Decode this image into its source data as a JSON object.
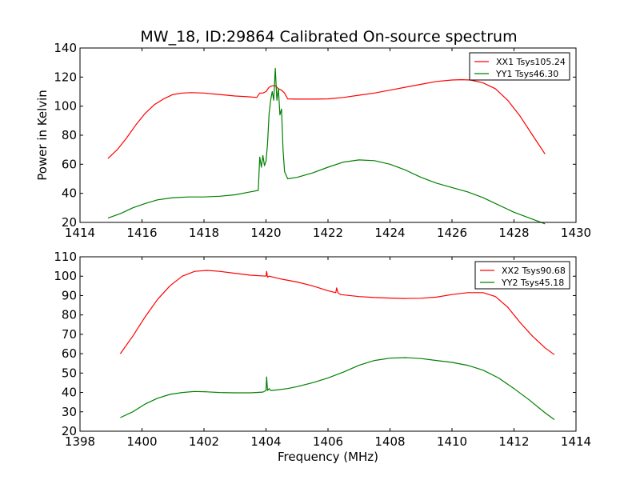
{
  "title": "MW_18, ID:29864 Calibrated On-source spectrum",
  "chart_data": [
    {
      "type": "line",
      "xlabel": "",
      "ylabel": "Power in Kelvin",
      "xlim": [
        1414,
        1430
      ],
      "ylim": [
        20,
        140
      ],
      "xticks": [
        1414,
        1416,
        1418,
        1420,
        1422,
        1424,
        1426,
        1428,
        1430
      ],
      "yticks": [
        20,
        40,
        60,
        80,
        100,
        120,
        140
      ],
      "grid": false,
      "legend_position": "upper right",
      "series": [
        {
          "name": "XX1 Tsys105.24",
          "color": "#ff0000",
          "x": [
            1414.9,
            1415.2,
            1415.5,
            1415.8,
            1416.1,
            1416.4,
            1416.7,
            1417.0,
            1417.3,
            1417.6,
            1418.0,
            1418.5,
            1419.0,
            1419.4,
            1419.7,
            1419.8,
            1419.9,
            1420.0,
            1420.1,
            1420.2,
            1420.3,
            1420.4,
            1420.5,
            1420.6,
            1420.7,
            1421.0,
            1421.5,
            1422.0,
            1422.5,
            1423.0,
            1423.5,
            1424.0,
            1424.5,
            1425.0,
            1425.5,
            1426.0,
            1426.3,
            1426.6,
            1427.0,
            1427.4,
            1427.8,
            1428.2,
            1428.6,
            1429.0
          ],
          "y": [
            64,
            70,
            78,
            87,
            95,
            101,
            105,
            108,
            109,
            109.3,
            109,
            108,
            107,
            106.5,
            106,
            109,
            109,
            110,
            113,
            114,
            114,
            112,
            111,
            109,
            105,
            104.8,
            104.8,
            105,
            106,
            107.5,
            109,
            111,
            113,
            115,
            117,
            118,
            118.2,
            118,
            116,
            112,
            104,
            93,
            80,
            67
          ]
        },
        {
          "name": "YY1 Tsys46.30",
          "color": "#008000",
          "x": [
            1414.9,
            1415.3,
            1415.7,
            1416.1,
            1416.5,
            1417.0,
            1417.5,
            1418.0,
            1418.5,
            1419.0,
            1419.5,
            1419.75,
            1419.8,
            1419.85,
            1419.9,
            1419.95,
            1420.0,
            1420.05,
            1420.1,
            1420.15,
            1420.2,
            1420.25,
            1420.3,
            1420.35,
            1420.4,
            1420.45,
            1420.5,
            1420.55,
            1420.6,
            1420.7,
            1421.0,
            1421.5,
            1422.0,
            1422.5,
            1423.0,
            1423.5,
            1424.0,
            1424.5,
            1425.0,
            1425.5,
            1426.0,
            1426.5,
            1427.0,
            1427.5,
            1428.0,
            1428.5,
            1429.0
          ],
          "y": [
            23,
            26,
            30,
            33,
            35.5,
            37,
            37.5,
            37.5,
            38,
            39,
            41,
            42,
            65,
            58,
            66,
            59,
            62,
            74,
            95,
            104,
            110,
            104,
            126,
            104,
            112,
            94,
            98,
            70,
            55,
            50,
            51,
            54,
            58,
            61.5,
            63,
            62.5,
            60,
            56,
            51,
            47,
            44,
            41,
            37,
            32,
            27,
            23,
            19
          ]
        }
      ]
    },
    {
      "type": "line",
      "xlabel": "Frequency (MHz)",
      "ylabel": "",
      "xlim": [
        1398,
        1414
      ],
      "ylim": [
        20,
        110
      ],
      "xticks": [
        1398,
        1400,
        1402,
        1404,
        1406,
        1408,
        1410,
        1412,
        1414
      ],
      "yticks": [
        20,
        30,
        40,
        50,
        60,
        70,
        80,
        90,
        100,
        110
      ],
      "grid": false,
      "legend_position": "upper right",
      "series": [
        {
          "name": "XX2 Tsys90.68",
          "color": "#ff0000",
          "x": [
            1399.3,
            1399.7,
            1400.1,
            1400.5,
            1400.9,
            1401.3,
            1401.7,
            1402.1,
            1402.5,
            1403.0,
            1403.5,
            1404.0,
            1404.02,
            1404.05,
            1404.1,
            1404.5,
            1405.0,
            1405.5,
            1406.0,
            1406.25,
            1406.28,
            1406.32,
            1406.4,
            1407.0,
            1407.5,
            1408.0,
            1408.5,
            1409.0,
            1409.5,
            1410.0,
            1410.5,
            1411.0,
            1411.4,
            1411.8,
            1412.2,
            1412.6,
            1413.0,
            1413.3
          ],
          "y": [
            60,
            69,
            79,
            88,
            95,
            100,
            102.5,
            103,
            102.5,
            101.5,
            100.5,
            100,
            102.5,
            99.5,
            100,
            98.5,
            97,
            95,
            92.5,
            91.5,
            94,
            91.5,
            90.5,
            89.5,
            89,
            88.7,
            88.5,
            88.6,
            89.2,
            90.5,
            91.5,
            91.5,
            89.5,
            84,
            76,
            69,
            63,
            59.5
          ]
        },
        {
          "name": "YY2 Tsys45.18",
          "color": "#008000",
          "x": [
            1399.3,
            1399.7,
            1400.1,
            1400.5,
            1400.9,
            1401.3,
            1401.7,
            1402.1,
            1402.5,
            1403.0,
            1403.5,
            1403.9,
            1404.0,
            1404.02,
            1404.05,
            1404.1,
            1404.15,
            1404.3,
            1404.7,
            1405.0,
            1405.5,
            1406.0,
            1406.5,
            1407.0,
            1407.5,
            1408.0,
            1408.5,
            1409.0,
            1409.5,
            1410.0,
            1410.5,
            1411.0,
            1411.5,
            1412.0,
            1412.5,
            1413.0,
            1413.3
          ],
          "y": [
            27,
            30,
            34,
            37,
            39,
            40,
            40.5,
            40.3,
            40,
            39.8,
            39.8,
            40.2,
            41,
            48,
            41,
            42,
            41,
            41.2,
            42,
            43,
            45,
            47.5,
            50.5,
            54,
            56.5,
            57.7,
            58,
            57.5,
            56.5,
            55.5,
            54,
            51.5,
            47.5,
            42,
            36,
            29.5,
            26
          ]
        }
      ]
    }
  ]
}
